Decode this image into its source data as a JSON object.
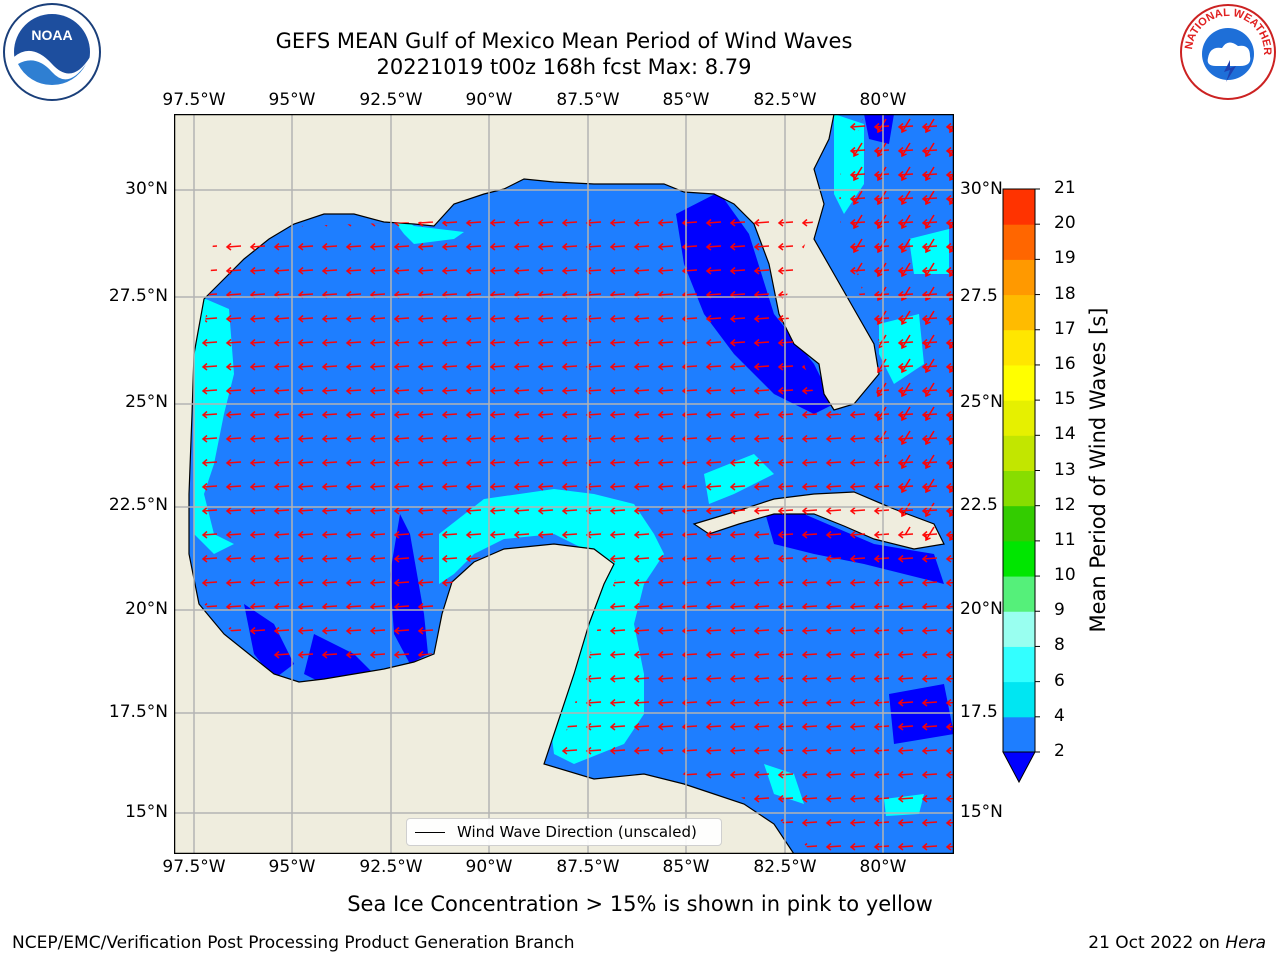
{
  "header": {
    "title_line1": "GEFS MEAN Gulf of Mexico Mean Period of Wind Waves",
    "title_line2": "20221019 t00z 168h fcst   Max: 8.79"
  },
  "map": {
    "lon_ticks": [
      "97.5°W",
      "95°W",
      "92.5°W",
      "90°W",
      "87.5°W",
      "85°W",
      "82.5°W",
      "80°W"
    ],
    "lat_ticks_left": [
      "30°N",
      "27.5°N",
      "25°N",
      "22.5°N",
      "20°N",
      "17.5°N",
      "15°N"
    ],
    "lat_ticks_right": [
      "30°N",
      "27.5",
      "25°N",
      "22.5",
      "20°N",
      "17.5",
      "15°N"
    ],
    "colors": {
      "land": "#efedde",
      "ocean_2_4": "#1e7eff",
      "ocean_below_2": "#0000ff",
      "ocean_4_6": "#00ffff",
      "arrow": "#ff0000",
      "coast": "#000000"
    }
  },
  "colorbar": {
    "label": "Mean Period of Wind Waves [s]",
    "ticks": [
      "2",
      "4",
      "6",
      "8",
      "9",
      "10",
      "11",
      "12",
      "13",
      "14",
      "15",
      "16",
      "17",
      "18",
      "19",
      "20",
      "21"
    ],
    "colors": [
      "#1e7eff",
      "#00e6f2",
      "#33ffff",
      "#99fff0",
      "#55f07a",
      "#00e600",
      "#33cc00",
      "#88dd00",
      "#c2e600",
      "#e6f000",
      "#ffff00",
      "#ffe600",
      "#ffbb00",
      "#ff9900",
      "#ff6600",
      "#ff3300"
    ],
    "extend_color": "#0000ff"
  },
  "legend": {
    "label": "Wind Wave Direction (unscaled)"
  },
  "caption": "Sea Ice Concentration > 15% is shown in pink to yellow",
  "footer": {
    "left": "NCEP/EMC/Verification Post Processing Product Generation Branch",
    "right_date": "21 Oct 2022 on ",
    "right_machine": "Hera"
  },
  "logos": {
    "noaa": {
      "text": "NOAA"
    },
    "nws": {
      "text": "NATIONAL WEATHER SERVICE"
    }
  }
}
